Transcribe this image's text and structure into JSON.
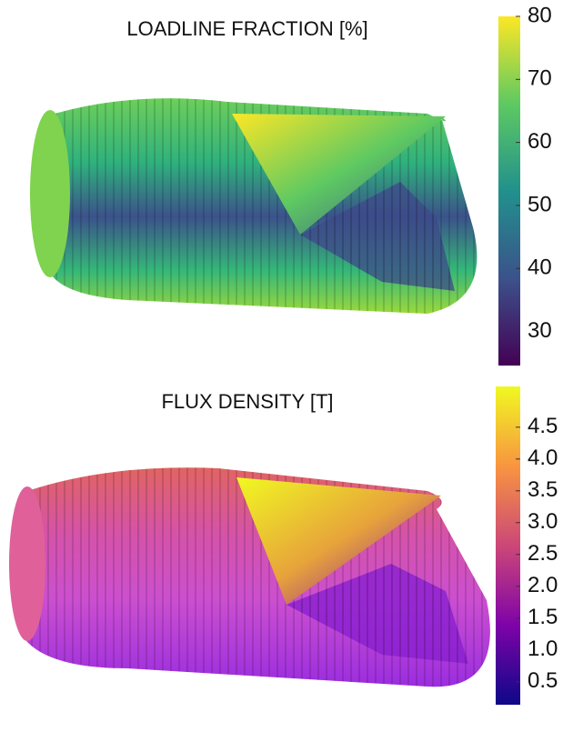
{
  "panels": [
    {
      "title": "LOADLINE FRACTION [%]",
      "colorbar": {
        "lim": [
          24.6,
          80
        ],
        "ticks": [
          30,
          40,
          50,
          60,
          70,
          80
        ],
        "colors": [
          "#440154",
          "#3b528b",
          "#21918c",
          "#5ec962",
          "#fde725"
        ]
      }
    },
    {
      "title": "FLUX DENSITY [T]",
      "colorbar": {
        "lim": [
          0.14,
          5.14
        ],
        "ticks": [
          0.5,
          {
            "value": 1,
            "label": "1.0"
          },
          1.5,
          {
            "value": 2,
            "label": "2.0"
          },
          2.5,
          {
            "value": 3,
            "label": "3.0"
          },
          3.5,
          {
            "value": 4,
            "label": "4.0"
          },
          4.5
        ],
        "colors": [
          "#0d0887",
          "#7e03a8",
          "#cc4778",
          "#f89540",
          "#f0f921"
        ]
      }
    }
  ]
}
